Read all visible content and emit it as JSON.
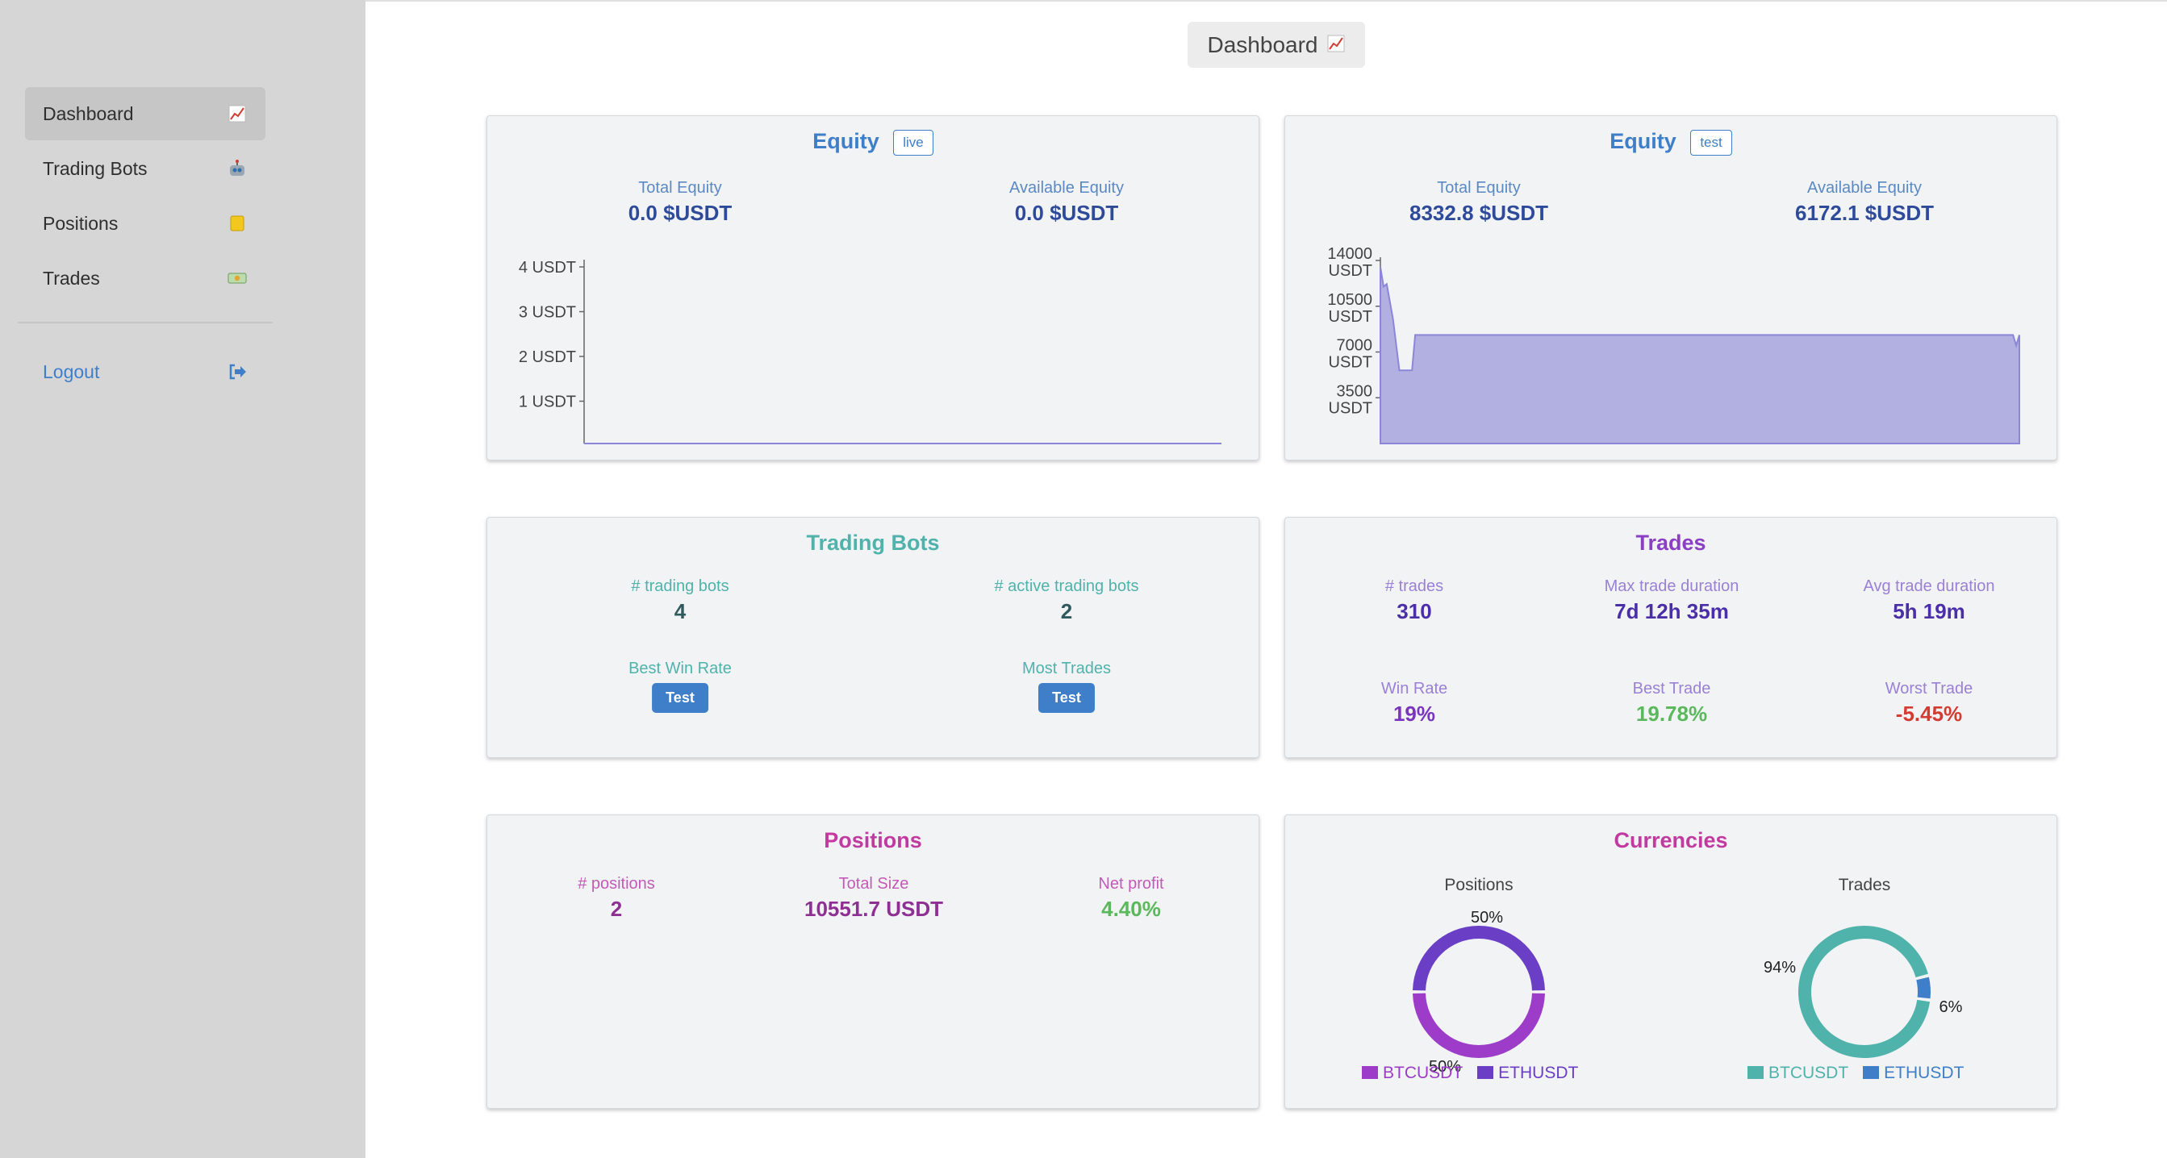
{
  "sidebar": {
    "items": [
      {
        "label": "Dashboard",
        "icon": "chart-increasing-icon"
      },
      {
        "label": "Trading Bots",
        "icon": "robot-icon"
      },
      {
        "label": "Positions",
        "icon": "note-icon"
      },
      {
        "label": "Trades",
        "icon": "money-icon"
      }
    ],
    "logout": {
      "label": "Logout",
      "icon": "sign-out-icon"
    }
  },
  "header": {
    "title": "Dashboard",
    "icon": "chart-increasing-icon"
  },
  "equity_live": {
    "title": "Equity",
    "badge": "live",
    "total_label": "Total Equity",
    "total_value": "0.0 $USDT",
    "available_label": "Available Equity",
    "available_value": "0.0 $USDT"
  },
  "equity_test": {
    "title": "Equity",
    "badge": "test",
    "total_label": "Total Equity",
    "total_value": "8332.8 $USDT",
    "available_label": "Available Equity",
    "available_value": "6172.1 $USDT"
  },
  "trading_bots": {
    "title": "Trading Bots",
    "count_label": "# trading bots",
    "count_value": "4",
    "active_label": "# active trading bots",
    "active_value": "2",
    "best_label": "Best Win Rate",
    "best_button": "Test",
    "most_label": "Most Trades",
    "most_button": "Test"
  },
  "trades": {
    "title": "Trades",
    "count_label": "# trades",
    "count_value": "310",
    "max_label": "Max trade duration",
    "max_value": "7d 12h 35m",
    "avg_label": "Avg trade duration",
    "avg_value": "5h 19m",
    "win_label": "Win Rate",
    "win_value": "19%",
    "best_label": "Best Trade",
    "best_value": "19.78%",
    "worst_label": "Worst Trade",
    "worst_value": "-5.45%"
  },
  "positions": {
    "title": "Positions",
    "count_label": "# positions",
    "count_value": "2",
    "size_label": "Total Size",
    "size_value": "10551.7 USDT",
    "profit_label": "Net profit",
    "profit_value": "4.40%"
  },
  "currencies": {
    "title": "Currencies",
    "positions_label": "Positions",
    "trades_label": "Trades"
  },
  "colors": {
    "accent_blue": "#3f7fc9",
    "teal": "#4fb3ab",
    "purple": "#6a3fc6",
    "magenta": "#b83d9e",
    "green": "#5cb85c",
    "red": "#d43c33",
    "area_fill": "#b2b0e0"
  },
  "chart_data": [
    {
      "type": "line",
      "title": "",
      "y_ticks": [
        "4 USDT",
        "3 USDT",
        "2 USDT",
        "1 USDT"
      ],
      "ylim": [
        0,
        4
      ],
      "x": [
        0,
        100
      ],
      "values": [
        0,
        0
      ]
    },
    {
      "type": "area",
      "title": "",
      "y_ticks": [
        [
          "14000",
          "USDT"
        ],
        [
          "10500",
          "USDT"
        ],
        [
          "7000",
          "USDT"
        ],
        [
          "3500",
          "USDT"
        ]
      ],
      "ylim": [
        0,
        14000
      ],
      "x": [
        0,
        0.5,
        1,
        2,
        3,
        3.5,
        5,
        5.5,
        6,
        100,
        100.5,
        101
      ],
      "values": [
        13500,
        12000,
        12200,
        9500,
        5600,
        5600,
        5600,
        8300,
        8300,
        8300,
        7500,
        8300
      ]
    },
    {
      "type": "pie",
      "title": "Positions",
      "labels": [
        "BTCUSDT",
        "ETHUSDT"
      ],
      "values": [
        50,
        50
      ],
      "data_labels": [
        "50%",
        "50%"
      ],
      "colors": [
        "#9c3cc8",
        "#6a3fc6"
      ]
    },
    {
      "type": "pie",
      "title": "Trades",
      "labels": [
        "BTCUSDT",
        "ETHUSDT"
      ],
      "values": [
        94,
        6
      ],
      "data_labels": [
        "94%",
        "6%"
      ],
      "colors": [
        "#4fb3ab",
        "#3f7fc9"
      ]
    }
  ]
}
